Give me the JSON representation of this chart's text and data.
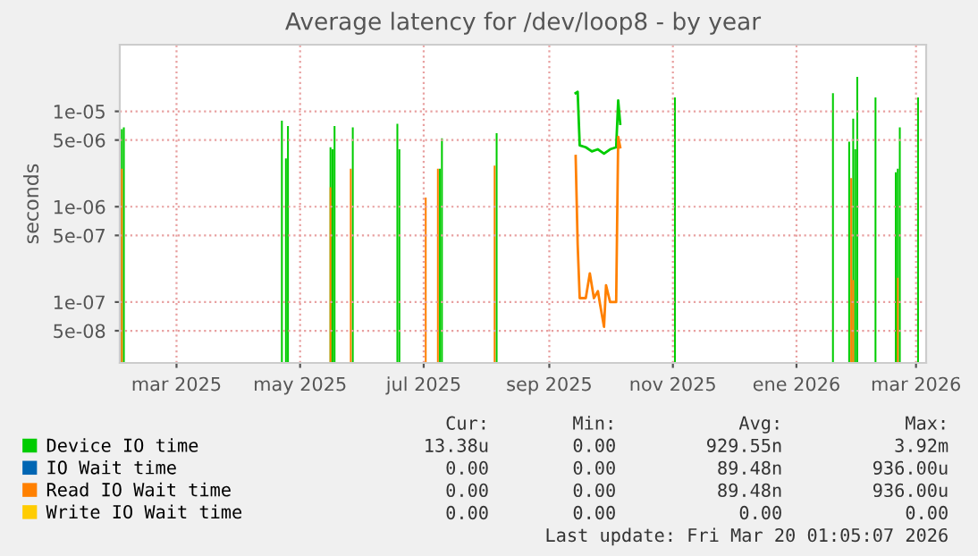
{
  "chart_data": {
    "type": "line",
    "title": "Average latency for /dev/loop8 - by year",
    "ylabel": "seconds",
    "log": "y",
    "xlim": [
      "2025-02-15",
      "2026-03-20"
    ],
    "ylim": [
      2.3e-08,
      5e-05
    ],
    "xticks": [
      {
        "value": "2025-03-15",
        "label": "mar 2025"
      },
      {
        "value": "2025-05-15",
        "label": "may 2025"
      },
      {
        "value": "2025-07-15",
        "label": "jul 2025"
      },
      {
        "value": "2025-09-15",
        "label": "sep 2025"
      },
      {
        "value": "2025-11-15",
        "label": "nov 2025"
      },
      {
        "value": "2026-01-15",
        "label": "ene 2026"
      },
      {
        "value": "2026-03-15",
        "label": "mar 2026"
      }
    ],
    "yticks": [
      {
        "value": 5e-08,
        "label": "5e-08"
      },
      {
        "value": 1e-07,
        "label": "1e-07"
      },
      {
        "value": 5e-07,
        "label": "5e-07"
      },
      {
        "value": 1e-06,
        "label": "1e-06"
      },
      {
        "value": 5e-06,
        "label": "5e-06"
      },
      {
        "value": 1e-05,
        "label": "1e-05"
      }
    ],
    "grid": true,
    "legend": "bottom",
    "marker": "none",
    "line_style": "solid",
    "series": [
      {
        "name": "Device IO time",
        "color": "#00cc00",
        "x": [
          "2025-09-28",
          "2025-09-29",
          "2025-09-30",
          "2025-10-03",
          "2025-10-06",
          "2025-10-09",
          "2025-10-12",
          "2025-10-15",
          "2025-10-18",
          "2025-10-19",
          "2025-10-20"
        ],
        "values": [
          1.55e-05,
          1.6e-05,
          4.4e-06,
          4.2e-06,
          3.8e-06,
          4e-06,
          3.6e-06,
          4e-06,
          4.2e-06,
          1.3e-05,
          7.4e-06
        ]
      },
      {
        "name": "IO Wait time",
        "color": "#0066b3"
      },
      {
        "name": "Read IO Wait time",
        "color": "#ff8000",
        "x": [
          "2025-09-28",
          "2025-09-29",
          "2025-09-30",
          "2025-10-03",
          "2025-10-05",
          "2025-10-07",
          "2025-10-09",
          "2025-10-10",
          "2025-10-12",
          "2025-10-13",
          "2025-10-15",
          "2025-10-18",
          "2025-10-19",
          "2025-10-20"
        ],
        "values": [
          3.4e-06,
          4e-07,
          1.1e-07,
          1.1e-07,
          2e-07,
          1.1e-07,
          1.3e-07,
          9.6e-08,
          5.5e-08,
          1.5e-07,
          1e-07,
          1e-07,
          5.4e-06,
          4.2e-06
        ]
      },
      {
        "name": "Write IO Wait time",
        "color": "#ffcc00"
      },
      {
        "type": "bar",
        "color": "#00cc00",
        "x": [
          "2025-02-16",
          "2025-02-17",
          "2025-05-06",
          "2025-05-08",
          "2025-05-09",
          "2025-05-30",
          "2025-05-31",
          "2025-06-01",
          "2025-06-10",
          "2025-07-02",
          "2025-07-03",
          "2025-07-23",
          "2025-07-24",
          "2025-08-20",
          "2025-11-16",
          "2026-02-02",
          "2026-02-10",
          "2026-02-12",
          "2026-02-13",
          "2026-02-14",
          "2026-02-23",
          "2026-03-05",
          "2026-03-06",
          "2026-03-07",
          "2026-03-16"
        ],
        "values": [
          6.5e-06,
          6.8e-06,
          8e-06,
          3.2e-06,
          7e-06,
          4.2e-06,
          4e-06,
          7e-06,
          6.8e-06,
          7.4e-06,
          4e-06,
          2.5e-06,
          5.2e-06,
          5.9e-06,
          1.4e-05,
          1.55e-05,
          4.8e-06,
          8.4e-06,
          4e-06,
          2.3e-05,
          1.4e-05,
          2.3e-06,
          2.5e-06,
          6.8e-06,
          1.4e-05
        ]
      },
      {
        "type": "bar",
        "color": "#ff8000",
        "x": [
          "2025-02-16",
          "2025-05-30",
          "2025-06-09",
          "2025-07-16",
          "2025-07-22",
          "2025-08-19",
          "2026-02-11",
          "2026-02-12",
          "2026-03-06"
        ],
        "values": [
          2.5e-06,
          1.6e-06,
          2.5e-06,
          1.25e-06,
          2.5e-06,
          2.7e-06,
          2e-06,
          1.7e-07,
          1.8e-07
        ]
      }
    ],
    "annotations": [
      "Cur:",
      "Min:",
      "Avg:",
      "Max:",
      "13.38u",
      "0.00",
      "929.55n",
      "3.92m",
      "0.00",
      "0.00",
      "89.48n",
      "936.00u",
      "0.00",
      "0.00",
      "89.48n",
      "936.00u",
      "0.00",
      "0.00",
      "0.00",
      "0.00",
      "Last update: Fri Mar 20 01:05:07 2026"
    ]
  }
}
